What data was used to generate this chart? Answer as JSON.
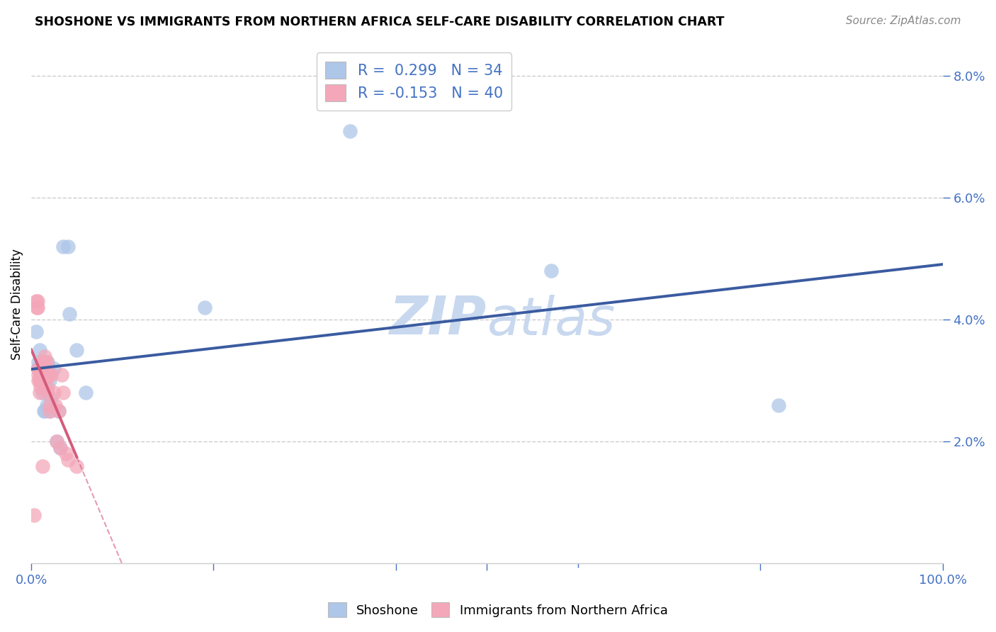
{
  "title": "SHOSHONE VS IMMIGRANTS FROM NORTHERN AFRICA SELF-CARE DISABILITY CORRELATION CHART",
  "source": "Source: ZipAtlas.com",
  "ylabel": "Self-Care Disability",
  "xlim": [
    0.0,
    1.0
  ],
  "ylim": [
    0.0,
    0.085
  ],
  "yticks": [
    0.02,
    0.04,
    0.06,
    0.08
  ],
  "ytick_labels": [
    "2.0%",
    "4.0%",
    "6.0%",
    "8.0%"
  ],
  "shoshone_color": "#aec6e8",
  "immigrant_color": "#f4a7b9",
  "shoshone_line_color": "#3a5ba0",
  "immigrant_line_color": "#d45b7a",
  "shoshone_R": 0.299,
  "shoshone_N": 34,
  "immigrant_R": -0.153,
  "immigrant_N": 40,
  "background_color": "#ffffff",
  "grid_color": "#cccccc",
  "axis_color": "#4472c4",
  "shoshone_x": [
    0.005,
    0.007,
    0.008,
    0.009,
    0.01,
    0.01,
    0.012,
    0.012,
    0.013,
    0.014,
    0.015,
    0.015,
    0.016,
    0.016,
    0.017,
    0.018,
    0.018,
    0.019,
    0.02,
    0.021,
    0.022,
    0.025,
    0.028,
    0.03,
    0.032,
    0.035,
    0.04,
    0.042,
    0.05,
    0.06,
    0.19,
    0.35,
    0.57,
    0.82
  ],
  "shoshone_y": [
    0.038,
    0.032,
    0.033,
    0.035,
    0.03,
    0.032,
    0.028,
    0.033,
    0.03,
    0.025,
    0.025,
    0.03,
    0.032,
    0.029,
    0.026,
    0.033,
    0.032,
    0.032,
    0.03,
    0.025,
    0.027,
    0.032,
    0.02,
    0.025,
    0.019,
    0.052,
    0.052,
    0.041,
    0.035,
    0.028,
    0.042,
    0.071,
    0.048,
    0.026
  ],
  "immigrant_x": [
    0.003,
    0.005,
    0.006,
    0.007,
    0.007,
    0.008,
    0.008,
    0.008,
    0.009,
    0.009,
    0.01,
    0.01,
    0.01,
    0.011,
    0.012,
    0.012,
    0.013,
    0.013,
    0.015,
    0.015,
    0.016,
    0.017,
    0.017,
    0.018,
    0.018,
    0.019,
    0.02,
    0.02,
    0.022,
    0.025,
    0.026,
    0.028,
    0.03,
    0.032,
    0.033,
    0.035,
    0.038,
    0.04,
    0.05,
    0.012
  ],
  "immigrant_y": [
    0.008,
    0.043,
    0.042,
    0.042,
    0.043,
    0.03,
    0.031,
    0.032,
    0.028,
    0.03,
    0.029,
    0.03,
    0.031,
    0.032,
    0.031,
    0.033,
    0.03,
    0.032,
    0.033,
    0.034,
    0.032,
    0.033,
    0.031,
    0.028,
    0.029,
    0.031,
    0.026,
    0.025,
    0.031,
    0.028,
    0.026,
    0.02,
    0.025,
    0.019,
    0.031,
    0.028,
    0.018,
    0.017,
    0.016,
    0.016
  ]
}
